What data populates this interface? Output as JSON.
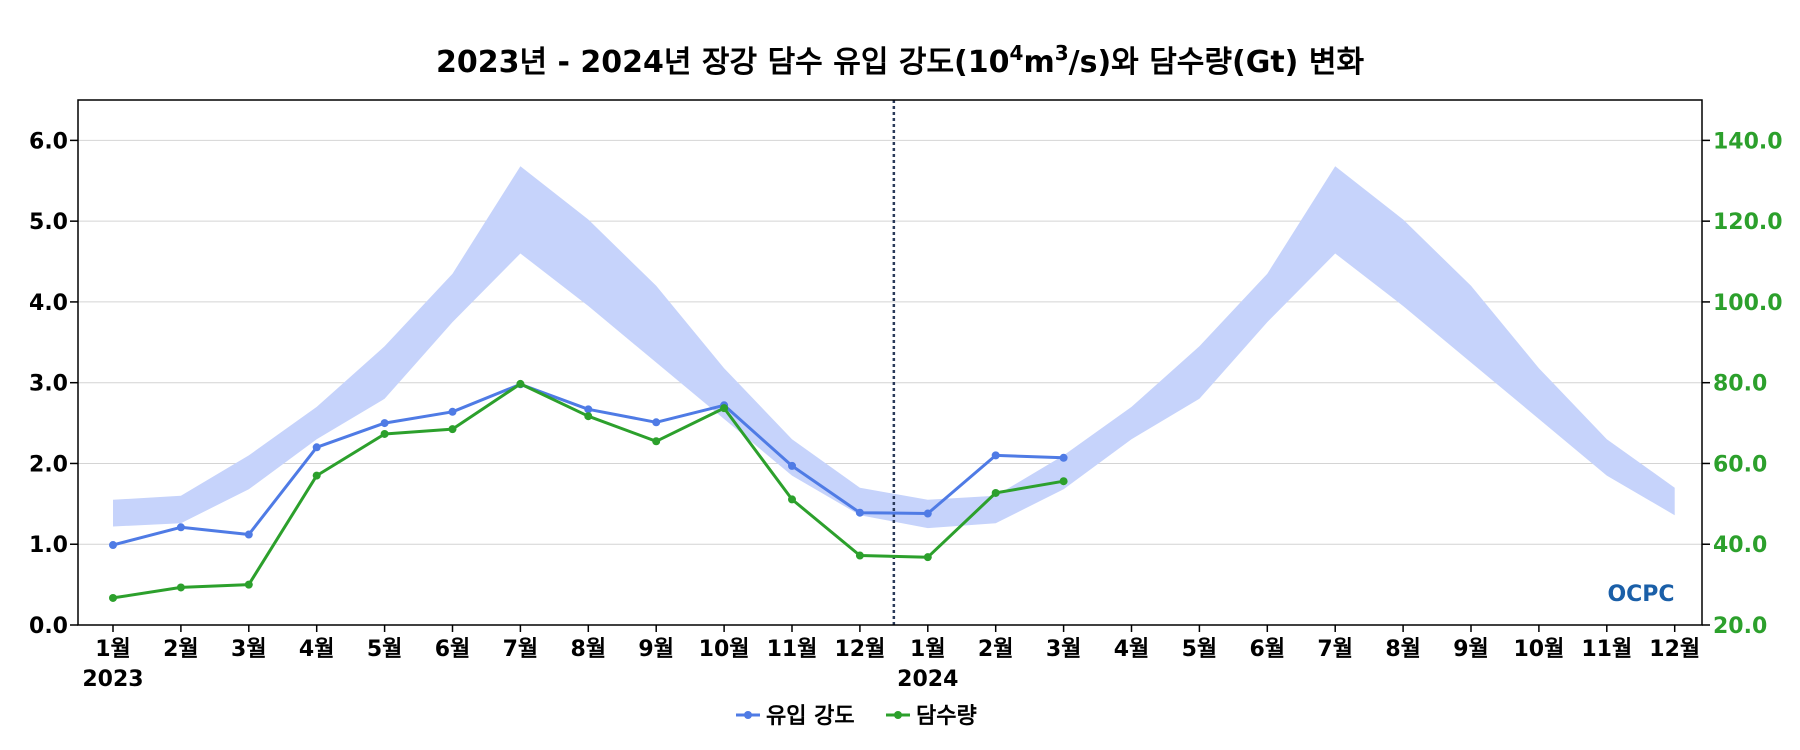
{
  "chart_data": {
    "type": "line",
    "title_parts": {
      "pre": "2023년 - 2024년 장강 담수 유입 강도(10",
      "sup1": "4",
      "mid": "m",
      "sup2": "3",
      "post": "/s)와 담수량(Gt) 변화"
    },
    "x_labels": [
      "1월",
      "2월",
      "3월",
      "4월",
      "5월",
      "6월",
      "7월",
      "8월",
      "9월",
      "10월",
      "11월",
      "12월",
      "1월",
      "2월",
      "3월",
      "4월",
      "5월",
      "6월",
      "7월",
      "8월",
      "9월",
      "10월",
      "11월",
      "12월"
    ],
    "year_labels": [
      {
        "index": 0,
        "label": "2023"
      },
      {
        "index": 12,
        "label": "2024"
      }
    ],
    "y_left": {
      "range": [
        0,
        6.5
      ],
      "ticks": [
        "0.0",
        "1.0",
        "2.0",
        "3.0",
        "4.0",
        "5.0",
        "6.0"
      ]
    },
    "y_right": {
      "range": [
        20,
        150
      ],
      "ticks": [
        "20.0",
        "40.0",
        "60.0",
        "80.0",
        "100.0",
        "120.0",
        "140.0"
      ]
    },
    "climatology_band": {
      "axis": "left",
      "lower": [
        1.22,
        1.26,
        1.68,
        2.3,
        2.8,
        3.75,
        4.6,
        3.95,
        3.25,
        2.55,
        1.85,
        1.36,
        1.2,
        1.26,
        1.68,
        2.3,
        2.8,
        3.75,
        4.6,
        3.95,
        3.25,
        2.55,
        1.85,
        1.36
      ],
      "upper": [
        1.55,
        1.6,
        2.1,
        2.7,
        3.45,
        4.35,
        5.68,
        5.02,
        4.2,
        3.18,
        2.3,
        1.7,
        1.55,
        1.6,
        2.1,
        2.7,
        3.45,
        4.35,
        5.68,
        5.02,
        4.2,
        3.18,
        2.3,
        1.7
      ],
      "color": "#c6d3fb"
    },
    "series": [
      {
        "name": "유입 강도",
        "axis": "left",
        "color": "#4f7be5",
        "values": [
          0.99,
          1.21,
          1.12,
          2.2,
          2.5,
          2.64,
          2.98,
          2.67,
          2.51,
          2.72,
          1.97,
          1.39,
          1.38,
          2.1,
          2.07
        ]
      },
      {
        "name": "담수량",
        "axis": "right",
        "color": "#2ca02c",
        "values": [
          26.7,
          29.3,
          30.0,
          57.0,
          67.3,
          68.5,
          79.7,
          71.7,
          65.5,
          73.7,
          51.1,
          37.2,
          36.8,
          52.7,
          55.6
        ]
      }
    ],
    "divider_after_index": 11,
    "grid": true,
    "legend_position": "bottom-center"
  },
  "logo": {
    "text": "OCPC",
    "color": "#1a5fa8"
  }
}
